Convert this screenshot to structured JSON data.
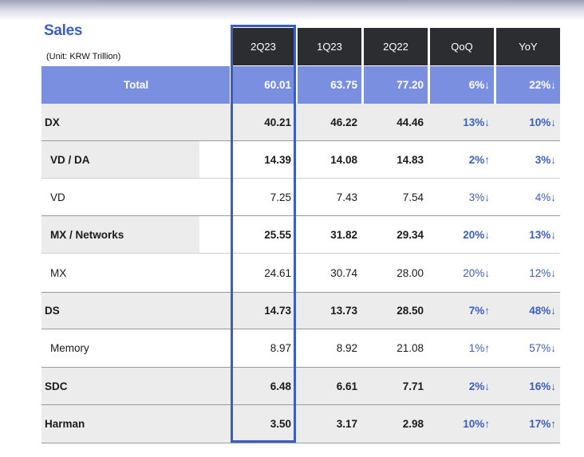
{
  "title": "Sales",
  "unit": "(Unit: KRW Trillion)",
  "columns": [
    "2Q23",
    "1Q23",
    "2Q22",
    "QoQ",
    "YoY"
  ],
  "rows": [
    {
      "label": "Total",
      "v2Q23": "60.01",
      "v1Q23": "63.75",
      "v2Q22": "77.20",
      "qoq": "6%↓",
      "yoy": "22%↓"
    },
    {
      "label": "DX",
      "v2Q23": "40.21",
      "v1Q23": "46.22",
      "v2Q22": "44.46",
      "qoq": "13%↓",
      "yoy": "10%↓"
    },
    {
      "label": "VD / DA",
      "v2Q23": "14.39",
      "v1Q23": "14.08",
      "v2Q22": "14.83",
      "qoq": "2%↑",
      "yoy": "3%↓"
    },
    {
      "label": "VD",
      "v2Q23": "7.25",
      "v1Q23": "7.43",
      "v2Q22": "7.54",
      "qoq": "3%↓",
      "yoy": "4%↓"
    },
    {
      "label": "MX / Networks",
      "v2Q23": "25.55",
      "v1Q23": "31.82",
      "v2Q22": "29.34",
      "qoq": "20%↓",
      "yoy": "13%↓"
    },
    {
      "label": "MX",
      "v2Q23": "24.61",
      "v1Q23": "30.74",
      "v2Q22": "28.00",
      "qoq": "20%↓",
      "yoy": "12%↓"
    },
    {
      "label": "DS",
      "v2Q23": "14.73",
      "v1Q23": "13.73",
      "v2Q22": "28.50",
      "qoq": "7%↑",
      "yoy": "48%↓"
    },
    {
      "label": "Memory",
      "v2Q23": "8.97",
      "v1Q23": "8.92",
      "v2Q22": "21.08",
      "qoq": "1%↑",
      "yoy": "57%↓"
    },
    {
      "label": "SDC",
      "v2Q23": "6.48",
      "v1Q23": "6.61",
      "v2Q22": "7.71",
      "qoq": "2%↓",
      "yoy": "16%↓"
    },
    {
      "label": "Harman",
      "v2Q23": "3.50",
      "v1Q23": "3.17",
      "v2Q22": "2.98",
      "qoq": "10%↑",
      "yoy": "17%↑"
    }
  ],
  "colors": {
    "accent": "#3c5ec0",
    "total_row": "#7b8fe0",
    "header_bg": "#2b2d30",
    "shaded_row": "#ececec"
  }
}
